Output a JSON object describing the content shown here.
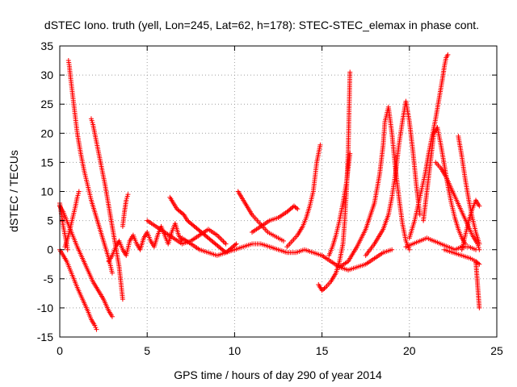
{
  "chart_data": {
    "type": "scatter",
    "title": "dSTEC Iono. truth (yell, Lon=245, Lat=62, h=178): STEC-STEC_elemax in phase cont.",
    "xlabel": "GPS time / hours of day 290 of year 2014",
    "ylabel": "dSTEC  / TECUs",
    "xlim": [
      0,
      25
    ],
    "ylim": [
      -15,
      35
    ],
    "xticks": [
      0,
      5,
      10,
      15,
      20,
      25
    ],
    "yticks": [
      -15,
      -10,
      -5,
      0,
      5,
      10,
      15,
      20,
      25,
      30,
      35
    ],
    "grid": true,
    "marker": "+",
    "color": "#ff0000",
    "series": [
      {
        "x": [
          0.0,
          0.2,
          0.4,
          0.6,
          0.8,
          1.0,
          1.3,
          1.6,
          1.8,
          2.0,
          2.1
        ],
        "y": [
          0.0,
          -1.0,
          -2.0,
          -3.5,
          -5.0,
          -6.5,
          -8.5,
          -10.5,
          -12.0,
          -13.0,
          -13.7
        ]
      },
      {
        "x": [
          0.0,
          0.1,
          0.2,
          0.3,
          0.4,
          0.45
        ],
        "y": [
          8.0,
          6.0,
          4.0,
          2.5,
          1.0,
          0.0
        ]
      },
      {
        "x": [
          0.5,
          0.55,
          0.6,
          0.7,
          0.8,
          0.9,
          1.0,
          1.2,
          1.4,
          1.6,
          1.8,
          2.0,
          2.2,
          2.4,
          2.6,
          2.8,
          3.0
        ],
        "y": [
          32.5,
          31.5,
          30.0,
          27.5,
          25.0,
          22.5,
          20.0,
          16.5,
          13.5,
          11.0,
          8.5,
          6.5,
          4.5,
          2.5,
          0.5,
          -1.5,
          -4.0
        ]
      },
      {
        "x": [
          0.0,
          0.2,
          0.4,
          0.6,
          0.8,
          1.0,
          1.3,
          1.6,
          1.9,
          2.2,
          2.5,
          2.8,
          3.0
        ],
        "y": [
          7.5,
          6.5,
          5.0,
          3.5,
          2.0,
          0.5,
          -1.5,
          -3.5,
          -5.5,
          -7.0,
          -8.5,
          -10.5,
          -11.5
        ]
      },
      {
        "x": [
          0.3,
          0.5,
          0.7,
          0.9,
          1.0,
          1.1
        ],
        "y": [
          0.5,
          2.5,
          5.0,
          7.5,
          9.0,
          10.0
        ]
      },
      {
        "x": [
          1.8,
          1.9,
          2.0,
          2.1,
          2.2,
          2.4,
          2.6,
          2.8,
          3.0,
          3.2,
          3.4,
          3.6
        ],
        "y": [
          22.5,
          21.5,
          20.0,
          18.5,
          17.0,
          14.0,
          11.0,
          7.5,
          4.0,
          0.5,
          -3.0,
          -8.5
        ]
      },
      {
        "x": [
          3.6,
          3.7,
          3.8,
          3.9
        ],
        "y": [
          4.0,
          6.5,
          8.5,
          9.5
        ]
      },
      {
        "x": [
          2.8,
          3.0,
          3.2,
          3.4,
          3.6,
          3.8,
          4.0,
          4.2,
          4.4,
          4.6,
          4.8,
          5.0,
          5.2,
          5.4,
          5.6,
          5.8,
          6.0,
          6.2,
          6.4,
          6.6,
          6.8,
          7.0
        ],
        "y": [
          -2.0,
          -1.0,
          0.5,
          1.5,
          0.0,
          -1.0,
          1.5,
          2.5,
          1.0,
          0.0,
          2.0,
          3.0,
          1.5,
          0.5,
          2.5,
          4.0,
          2.5,
          1.0,
          3.0,
          4.5,
          2.5,
          1.5
        ]
      },
      {
        "x": [
          6.3,
          6.5,
          6.7,
          6.9,
          7.1,
          7.3,
          7.5,
          7.7,
          7.9,
          8.1,
          8.3,
          8.5,
          8.7,
          8.9,
          9.1,
          9.3,
          9.5,
          9.7,
          9.9,
          10.1
        ],
        "y": [
          9.0,
          8.0,
          7.0,
          6.5,
          6.0,
          5.0,
          4.5,
          4.0,
          3.5,
          3.0,
          2.5,
          2.0,
          1.5,
          1.0,
          0.5,
          0.0,
          -0.5,
          0.0,
          0.5,
          1.0
        ]
      },
      {
        "x": [
          7.0,
          7.5,
          8.0,
          8.5,
          9.0,
          9.5,
          10.0,
          10.5,
          11.0,
          11.5,
          12.0,
          12.5,
          13.0,
          13.5,
          14.0,
          14.5,
          15.0
        ],
        "y": [
          2.0,
          1.0,
          0.0,
          -0.5,
          -1.0,
          -0.5,
          0.0,
          0.5,
          1.0,
          1.0,
          0.5,
          0.0,
          -0.5,
          -0.5,
          0.0,
          -0.5,
          -1.0
        ]
      },
      {
        "x": [
          5.0,
          5.5,
          6.0,
          6.5,
          7.0,
          7.5,
          8.0,
          8.5,
          9.0,
          9.5
        ],
        "y": [
          5.0,
          4.0,
          3.0,
          2.0,
          1.0,
          1.5,
          2.5,
          3.5,
          2.5,
          1.0
        ]
      },
      {
        "x": [
          10.2,
          10.4,
          10.6,
          10.8,
          11.0,
          11.3,
          11.6,
          11.9,
          12.2,
          12.5,
          12.8
        ],
        "y": [
          10.0,
          9.0,
          8.0,
          7.0,
          6.0,
          5.0,
          4.0,
          3.0,
          2.5,
          2.0,
          1.5
        ]
      },
      {
        "x": [
          11.0,
          11.5,
          12.0,
          12.5,
          13.0,
          13.2,
          13.4,
          13.6
        ],
        "y": [
          3.0,
          4.0,
          5.0,
          5.5,
          6.5,
          7.0,
          7.5,
          7.0
        ]
      },
      {
        "x": [
          13.0,
          13.3,
          13.6,
          13.9,
          14.1,
          14.3,
          14.5,
          14.6,
          14.7,
          14.8,
          14.9
        ],
        "y": [
          0.5,
          1.5,
          2.5,
          4.0,
          5.5,
          7.5,
          10.0,
          12.5,
          15.0,
          16.5,
          18.0
        ]
      },
      {
        "x": [
          14.8,
          15.0,
          15.2,
          15.5,
          15.8,
          16.0,
          16.2,
          16.3,
          16.4,
          16.5,
          16.6
        ],
        "y": [
          -6.0,
          -7.0,
          -6.5,
          -5.5,
          -4.0,
          -2.0,
          1.0,
          5.0,
          10.0,
          17.0,
          30.5
        ]
      },
      {
        "x": [
          15.0,
          15.5,
          16.0,
          16.5,
          17.0,
          17.5,
          18.0,
          18.5,
          19.0
        ],
        "y": [
          -1.0,
          -2.0,
          -3.0,
          -3.5,
          -3.0,
          -2.5,
          -1.5,
          -0.5,
          0.0
        ]
      },
      {
        "x": [
          15.4,
          15.6,
          15.8,
          16.0,
          16.2,
          16.4,
          16.6
        ],
        "y": [
          -1.0,
          0.5,
          2.5,
          5.0,
          8.0,
          11.5,
          16.5
        ]
      },
      {
        "x": [
          16.0,
          16.5,
          17.0,
          17.5,
          18.0,
          18.3,
          18.5,
          18.6,
          18.8,
          19.0,
          19.2,
          19.4,
          19.6,
          19.8,
          20.0
        ],
        "y": [
          -3.0,
          -2.0,
          0.5,
          3.5,
          8.0,
          13.0,
          18.0,
          22.0,
          24.5,
          20.0,
          14.0,
          9.0,
          4.5,
          1.5,
          0.0
        ]
      },
      {
        "x": [
          17.5,
          18.0,
          18.5,
          18.8,
          19.0,
          19.2,
          19.4,
          19.6,
          19.8,
          20.0,
          20.2,
          20.4,
          20.6
        ],
        "y": [
          -1.0,
          1.0,
          3.5,
          6.0,
          9.0,
          13.0,
          18.0,
          22.0,
          25.5,
          22.0,
          17.0,
          11.0,
          6.0
        ]
      },
      {
        "x": [
          19.8,
          20.2,
          20.6,
          21.0,
          21.4,
          21.8,
          22.2,
          22.6,
          23.0,
          23.4,
          23.8
        ],
        "y": [
          0.5,
          1.0,
          1.5,
          2.0,
          1.5,
          1.0,
          0.5,
          0.0,
          0.5,
          0.5,
          0.0
        ]
      },
      {
        "x": [
          20.0,
          20.3,
          20.6,
          20.9,
          21.1,
          21.3,
          21.5,
          21.7,
          21.9,
          22.0,
          22.1,
          22.2
        ],
        "y": [
          2.0,
          5.0,
          9.0,
          13.0,
          16.5,
          19.5,
          22.5,
          26.0,
          29.5,
          31.5,
          33.0,
          33.5
        ]
      },
      {
        "x": [
          20.8,
          21.0,
          21.2,
          21.4,
          21.6,
          21.8,
          22.0,
          22.2,
          22.4,
          22.6,
          22.8,
          23.0,
          23.2
        ],
        "y": [
          5.0,
          10.0,
          15.0,
          20.0,
          21.0,
          18.0,
          14.5,
          11.0,
          8.0,
          5.5,
          3.5,
          2.0,
          1.0
        ]
      },
      {
        "x": [
          21.5,
          21.8,
          22.1,
          22.4,
          22.7,
          23.0,
          23.3,
          23.6,
          23.9,
          24.0
        ],
        "y": [
          15.0,
          14.0,
          12.5,
          10.5,
          8.5,
          6.5,
          4.5,
          2.5,
          1.0,
          0.0
        ]
      },
      {
        "x": [
          22.8,
          23.0,
          23.2,
          23.4,
          23.6,
          23.8,
          24.0
        ],
        "y": [
          19.5,
          16.0,
          12.0,
          8.5,
          5.5,
          3.0,
          1.0
        ]
      },
      {
        "x": [
          23.0,
          23.2,
          23.4,
          23.6,
          23.8,
          24.0
        ],
        "y": [
          0.0,
          2.5,
          5.0,
          7.0,
          8.5,
          7.5
        ]
      },
      {
        "x": [
          23.8,
          23.85,
          23.9,
          23.95,
          24.0
        ],
        "y": [
          -2.0,
          -4.0,
          -6.0,
          -8.0,
          -10.0
        ]
      },
      {
        "x": [
          22.0,
          22.5,
          23.0,
          23.5,
          23.8,
          24.0
        ],
        "y": [
          0.0,
          -0.5,
          -1.0,
          -1.5,
          -2.0,
          -2.5
        ]
      }
    ]
  }
}
